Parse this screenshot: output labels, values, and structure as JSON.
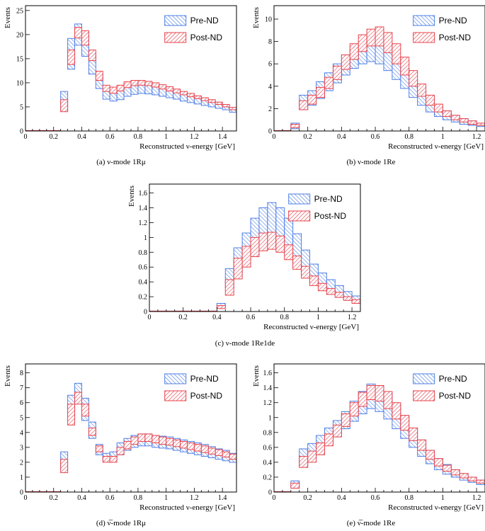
{
  "colors": {
    "pre": "#4f7fe6",
    "post": "#e8424a"
  },
  "chart_data": [
    {
      "id": "a",
      "type": "band-histogram",
      "caption": "(a) ν-mode 1Rμ",
      "xlabel": "Reconstructed ν-energy [GeV]",
      "ylabel": "Events",
      "xlim": [
        0,
        1.5
      ],
      "ylim": [
        0,
        26
      ],
      "xticks": [
        0,
        0.2,
        0.4,
        0.6,
        0.8,
        1,
        1.2,
        1.4
      ],
      "xtick_labels": [
        "0",
        "0.2",
        "0.4",
        "0.6",
        "0.8",
        "1",
        "1.2",
        "1.4"
      ],
      "yticks": [
        0,
        5,
        10,
        15,
        20,
        25
      ],
      "ytick_labels": [
        "0",
        "5",
        "10",
        "15",
        "20",
        "25"
      ],
      "legend": [
        "Pre-ND",
        "Post-ND"
      ],
      "bins": [
        0,
        0.05,
        0.1,
        0.15,
        0.2,
        0.25,
        0.3,
        0.35,
        0.4,
        0.45,
        0.5,
        0.55,
        0.6,
        0.65,
        0.7,
        0.75,
        0.8,
        0.85,
        0.9,
        0.95,
        1.0,
        1.05,
        1.1,
        1.15,
        1.2,
        1.25,
        1.3,
        1.35,
        1.4,
        1.45,
        1.5
      ],
      "series": [
        {
          "name": "Pre-ND",
          "low": [
            0,
            0,
            0,
            0,
            0.1,
            4.2,
            12.8,
            17.8,
            15.5,
            11.8,
            8.8,
            6.6,
            6.2,
            6.5,
            7.2,
            7.6,
            7.8,
            7.7,
            7.5,
            7.2,
            6.9,
            6.6,
            6.2,
            5.9,
            5.6,
            5.3,
            5.0,
            4.7,
            4.4,
            3.9
          ],
          "high": [
            0,
            0,
            0,
            0,
            0.5,
            8.2,
            19.2,
            22.2,
            20.3,
            16.1,
            11.7,
            8.9,
            8.4,
            8.8,
            9.6,
            9.9,
            10.1,
            9.9,
            9.6,
            9.2,
            8.8,
            8.4,
            7.9,
            7.5,
            7.0,
            6.6,
            6.2,
            5.8,
            5.4,
            4.7
          ]
        },
        {
          "name": "Post-ND",
          "low": [
            0,
            0,
            0,
            0,
            0.1,
            4.0,
            13.8,
            19.3,
            17.8,
            14.6,
            10.5,
            8.2,
            7.8,
            8.3,
            9.0,
            9.4,
            9.5,
            9.4,
            9.1,
            8.7,
            8.3,
            7.9,
            7.5,
            7.1,
            6.7,
            6.3,
            5.9,
            5.5,
            5.0,
            4.4
          ],
          "high": [
            0,
            0,
            0,
            0,
            0.5,
            6.5,
            16.8,
            21.5,
            20.8,
            16.8,
            12.4,
            9.5,
            9.1,
            9.5,
            10.2,
            10.5,
            10.5,
            10.3,
            10.0,
            9.6,
            9.2,
            8.7,
            8.2,
            7.8,
            7.3,
            6.9,
            6.5,
            6.0,
            5.5,
            4.9
          ]
        }
      ]
    },
    {
      "id": "b",
      "type": "band-histogram",
      "caption": "(b) ν-mode 1Re",
      "xlabel": "Reconstructed ν-energy [GeV]",
      "ylabel": "Events",
      "xlim": [
        0,
        1.25
      ],
      "ylim": [
        0,
        11.2
      ],
      "xticks": [
        0,
        0.2,
        0.4,
        0.6,
        0.8,
        1,
        1.2
      ],
      "xtick_labels": [
        "0",
        "0.2",
        "0.4",
        "0.6",
        "0.8",
        "1",
        "1.2"
      ],
      "yticks": [
        0,
        2,
        4,
        6,
        8,
        10
      ],
      "ytick_labels": [
        "0",
        "2",
        "4",
        "6",
        "8",
        "10"
      ],
      "legend": [
        "Pre-ND",
        "Post-ND"
      ],
      "bins": [
        0,
        0.05,
        0.1,
        0.15,
        0.2,
        0.25,
        0.3,
        0.35,
        0.4,
        0.45,
        0.5,
        0.55,
        0.6,
        0.65,
        0.7,
        0.75,
        0.8,
        0.85,
        0.9,
        0.95,
        1.0,
        1.05,
        1.1,
        1.15,
        1.2,
        1.25
      ],
      "series": [
        {
          "name": "Pre-ND",
          "low": [
            0,
            0,
            0.2,
            1.9,
            2.3,
            2.9,
            3.6,
            4.3,
            5.0,
            5.6,
            6.0,
            6.2,
            6.0,
            5.4,
            4.6,
            3.8,
            3.0,
            2.3,
            1.7,
            1.3,
            1.0,
            0.8,
            0.6,
            0.5,
            0.4
          ],
          "high": [
            0,
            0,
            0.7,
            3.2,
            3.6,
            4.4,
            5.2,
            6.0,
            6.8,
            7.5,
            8.0,
            8.4,
            8.2,
            7.6,
            6.6,
            5.6,
            4.6,
            3.6,
            2.8,
            2.2,
            1.7,
            1.4,
            1.1,
            0.9,
            0.7
          ]
        },
        {
          "name": "Post-ND",
          "low": [
            0,
            0,
            0.3,
            1.9,
            2.4,
            3.0,
            3.8,
            4.6,
            5.5,
            6.4,
            7.1,
            7.6,
            7.6,
            7.0,
            6.0,
            5.0,
            4.0,
            3.1,
            2.3,
            1.7,
            1.3,
            1.0,
            0.8,
            0.6,
            0.5
          ],
          "high": [
            0,
            0,
            0.6,
            2.7,
            3.2,
            3.9,
            4.8,
            5.8,
            6.8,
            7.8,
            8.6,
            9.1,
            9.3,
            8.8,
            7.8,
            6.6,
            5.4,
            4.2,
            3.2,
            2.4,
            1.8,
            1.4,
            1.1,
            0.9,
            0.7
          ]
        }
      ]
    },
    {
      "id": "c",
      "type": "band-histogram",
      "caption": "(c) ν-mode 1Re1de",
      "xlabel": "Reconstructed ν-energy [GeV]",
      "ylabel": "Events",
      "xlim": [
        0,
        1.25
      ],
      "ylim": [
        0,
        1.72
      ],
      "xticks": [
        0,
        0.2,
        0.4,
        0.6,
        0.8,
        1,
        1.2
      ],
      "xtick_labels": [
        "0",
        "0.2",
        "0.4",
        "0.6",
        "0.8",
        "1",
        "1.2"
      ],
      "yticks": [
        0,
        0.2,
        0.4,
        0.6,
        0.8,
        1,
        1.2,
        1.4,
        1.6
      ],
      "ytick_labels": [
        "0",
        "0.2",
        "0.4",
        "0.6",
        "0.8",
        "1",
        "1.2",
        "1.4",
        "1.6"
      ],
      "legend": [
        "Pre-ND",
        "Post-ND"
      ],
      "bins": [
        0,
        0.05,
        0.1,
        0.15,
        0.2,
        0.25,
        0.3,
        0.35,
        0.4,
        0.45,
        0.5,
        0.55,
        0.6,
        0.65,
        0.7,
        0.75,
        0.8,
        0.85,
        0.9,
        0.95,
        1.0,
        1.05,
        1.1,
        1.15,
        1.2,
        1.25
      ],
      "series": [
        {
          "name": "Pre-ND",
          "low": [
            0,
            0,
            0,
            0,
            0,
            0,
            0,
            0,
            0.05,
            0.32,
            0.5,
            0.62,
            0.75,
            0.85,
            0.9,
            0.86,
            0.77,
            0.63,
            0.5,
            0.39,
            0.32,
            0.27,
            0.22,
            0.17,
            0.13
          ],
          "high": [
            0,
            0,
            0,
            0,
            0,
            0,
            0,
            0,
            0.11,
            0.58,
            0.86,
            1.06,
            1.26,
            1.4,
            1.47,
            1.4,
            1.26,
            1.05,
            0.83,
            0.64,
            0.52,
            0.43,
            0.35,
            0.27,
            0.21
          ]
        },
        {
          "name": "Post-ND",
          "low": [
            0,
            0,
            0,
            0,
            0,
            0,
            0,
            0,
            0.04,
            0.22,
            0.44,
            0.6,
            0.74,
            0.82,
            0.84,
            0.8,
            0.7,
            0.57,
            0.45,
            0.35,
            0.28,
            0.23,
            0.19,
            0.15,
            0.11
          ],
          "high": [
            0,
            0,
            0,
            0,
            0,
            0,
            0,
            0,
            0.08,
            0.43,
            0.72,
            0.88,
            1.0,
            1.06,
            1.07,
            1.02,
            0.9,
            0.75,
            0.61,
            0.48,
            0.38,
            0.31,
            0.26,
            0.2,
            0.16
          ]
        }
      ]
    },
    {
      "id": "d",
      "type": "band-histogram",
      "caption": "(d) ν̅-mode 1Rμ",
      "xlabel": "Reconstructed ν-energy [GeV]",
      "ylabel": "Events",
      "xlim": [
        0,
        1.5
      ],
      "ylim": [
        0,
        8.6
      ],
      "xticks": [
        0,
        0.2,
        0.4,
        0.6,
        0.8,
        1,
        1.2,
        1.4
      ],
      "xtick_labels": [
        "0",
        "0.2",
        "0.4",
        "0.6",
        "0.8",
        "1",
        "1.2",
        "1.4"
      ],
      "yticks": [
        0,
        1,
        2,
        3,
        4,
        5,
        6,
        7,
        8
      ],
      "ytick_labels": [
        "0",
        "1",
        "2",
        "3",
        "4",
        "5",
        "6",
        "7",
        "8"
      ],
      "legend": [
        "Pre-ND",
        "Post-ND"
      ],
      "bins": [
        0,
        0.05,
        0.1,
        0.15,
        0.2,
        0.25,
        0.3,
        0.35,
        0.4,
        0.45,
        0.5,
        0.55,
        0.6,
        0.65,
        0.7,
        0.75,
        0.8,
        0.85,
        0.9,
        0.95,
        1.0,
        1.05,
        1.1,
        1.15,
        1.2,
        1.25,
        1.3,
        1.35,
        1.4,
        1.45,
        1.5
      ],
      "series": [
        {
          "name": "Pre-ND",
          "low": [
            0,
            0,
            0,
            0,
            0.05,
            1.5,
            5.1,
            6.0,
            4.8,
            3.6,
            2.5,
            2.1,
            2.2,
            2.5,
            2.8,
            3.0,
            3.1,
            3.1,
            3.0,
            2.95,
            2.9,
            2.8,
            2.7,
            2.6,
            2.5,
            2.4,
            2.3,
            2.2,
            2.1,
            2.0
          ],
          "high": [
            0,
            0,
            0,
            0,
            0.15,
            2.7,
            6.5,
            7.3,
            6.3,
            4.7,
            3.2,
            2.6,
            2.7,
            3.3,
            3.6,
            3.8,
            3.9,
            3.9,
            3.8,
            3.75,
            3.7,
            3.6,
            3.5,
            3.4,
            3.3,
            3.2,
            3.05,
            2.9,
            2.8,
            2.6
          ]
        },
        {
          "name": "Post-ND",
          "low": [
            0,
            0,
            0,
            0,
            0.05,
            1.3,
            4.5,
            5.9,
            5.1,
            3.8,
            2.7,
            2.0,
            2.0,
            2.5,
            2.9,
            3.2,
            3.4,
            3.4,
            3.3,
            3.2,
            3.15,
            3.05,
            2.95,
            2.85,
            2.75,
            2.65,
            2.55,
            2.45,
            2.35,
            2.2
          ],
          "high": [
            0,
            0,
            0,
            0,
            0.15,
            2.2,
            5.9,
            6.7,
            5.9,
            4.3,
            3.1,
            2.4,
            2.4,
            3.0,
            3.4,
            3.7,
            3.9,
            3.9,
            3.8,
            3.7,
            3.6,
            3.5,
            3.4,
            3.3,
            3.2,
            3.1,
            2.95,
            2.85,
            2.7,
            2.55
          ]
        }
      ]
    },
    {
      "id": "e",
      "type": "band-histogram",
      "caption": "(e) ν̅-mode 1Re",
      "xlabel": "Reconstructed ν-energy [GeV]",
      "ylabel": "Events",
      "xlim": [
        0,
        1.25
      ],
      "ylim": [
        0,
        1.72
      ],
      "xticks": [
        0,
        0.2,
        0.4,
        0.6,
        0.8,
        1,
        1.2
      ],
      "xtick_labels": [
        "0",
        "0.2",
        "0.4",
        "0.6",
        "0.8",
        "1",
        "1.2"
      ],
      "yticks": [
        0,
        0.2,
        0.4,
        0.6,
        0.8,
        1,
        1.2,
        1.4,
        1.6
      ],
      "ytick_labels": [
        "0",
        "0.2",
        "0.4",
        "0.6",
        "0.8",
        "1",
        "1.2",
        "1.4",
        "1.6"
      ],
      "legend": [
        "Pre-ND",
        "Post-ND"
      ],
      "bins": [
        0,
        0.05,
        0.1,
        0.15,
        0.2,
        0.25,
        0.3,
        0.35,
        0.4,
        0.45,
        0.5,
        0.55,
        0.6,
        0.65,
        0.7,
        0.75,
        0.8,
        0.85,
        0.9,
        0.95,
        1.0,
        1.05,
        1.1,
        1.15,
        1.2,
        1.25
      ],
      "series": [
        {
          "name": "Pre-ND",
          "low": [
            0,
            0,
            0.06,
            0.35,
            0.45,
            0.55,
            0.65,
            0.75,
            0.85,
            0.95,
            1.05,
            1.12,
            1.08,
            0.98,
            0.85,
            0.72,
            0.6,
            0.48,
            0.38,
            0.3,
            0.24,
            0.2,
            0.16,
            0.13,
            0.1
          ],
          "high": [
            0,
            0,
            0.15,
            0.58,
            0.65,
            0.76,
            0.86,
            0.96,
            1.08,
            1.22,
            1.35,
            1.45,
            1.42,
            1.33,
            1.18,
            1.02,
            0.86,
            0.7,
            0.56,
            0.45,
            0.37,
            0.3,
            0.24,
            0.2,
            0.16
          ]
        },
        {
          "name": "Post-ND",
          "low": [
            0,
            0,
            0.05,
            0.33,
            0.4,
            0.5,
            0.62,
            0.74,
            0.88,
            1.02,
            1.15,
            1.24,
            1.22,
            1.12,
            0.98,
            0.83,
            0.69,
            0.56,
            0.44,
            0.35,
            0.28,
            0.23,
            0.19,
            0.15,
            0.12
          ],
          "high": [
            0,
            0,
            0.12,
            0.48,
            0.55,
            0.66,
            0.78,
            0.9,
            1.05,
            1.2,
            1.34,
            1.43,
            1.43,
            1.35,
            1.2,
            1.03,
            0.86,
            0.7,
            0.56,
            0.45,
            0.36,
            0.3,
            0.25,
            0.2,
            0.16
          ]
        }
      ]
    }
  ]
}
